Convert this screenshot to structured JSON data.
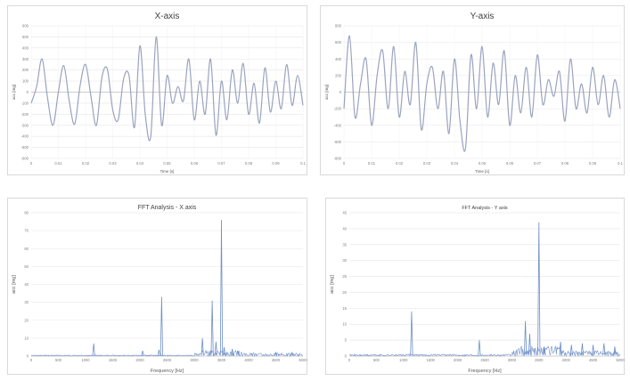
{
  "charts": [
    {
      "type": "line",
      "title": "X-axis",
      "xlabel": "Time [s]",
      "ylabel": "acc [mg]",
      "xlim": [
        0,
        0.1
      ],
      "ylim": [
        -600,
        600
      ],
      "xticks": [
        0,
        0.01,
        0.02,
        0.03,
        0.04,
        0.05,
        0.06,
        0.07,
        0.08,
        0.09,
        0.1
      ],
      "xtick_labels": [
        "0",
        "0.01",
        "0.02",
        "0.03",
        "0.04",
        "0.05",
        "0.06",
        "0.07",
        "0.08",
        "0.09",
        "0.1"
      ],
      "yticks": [
        -600,
        -500,
        -400,
        -300,
        -200,
        -100,
        0,
        100,
        200,
        300,
        400,
        500,
        600
      ],
      "ytick_labels": [
        "-600",
        "-500",
        "-400",
        "-300",
        "-200",
        "-100",
        "0",
        "100",
        "200",
        "300",
        "400",
        "500",
        "600"
      ],
      "grid": true,
      "line_color": "#9aa3bf",
      "x": [
        0,
        0.002,
        0.004,
        0.006,
        0.008,
        0.01,
        0.012,
        0.014,
        0.016,
        0.018,
        0.02,
        0.022,
        0.024,
        0.026,
        0.028,
        0.03,
        0.032,
        0.034,
        0.036,
        0.038,
        0.04,
        0.042,
        0.044,
        0.046,
        0.048,
        0.05,
        0.052,
        0.054,
        0.056,
        0.058,
        0.06,
        0.062,
        0.064,
        0.066,
        0.068,
        0.07,
        0.072,
        0.074,
        0.076,
        0.078,
        0.08,
        0.082,
        0.084,
        0.086,
        0.088,
        0.09,
        0.092,
        0.094,
        0.096,
        0.098,
        0.1
      ],
      "y": [
        -100,
        50,
        300,
        -50,
        -300,
        0,
        240,
        -80,
        -290,
        60,
        250,
        -40,
        -300,
        130,
        210,
        -160,
        -250,
        120,
        150,
        -320,
        420,
        -210,
        -400,
        500,
        -300,
        150,
        -100,
        50,
        -80,
        300,
        -250,
        100,
        -200,
        300,
        -390,
        100,
        -250,
        200,
        -100,
        260,
        -200,
        80,
        -280,
        220,
        -180,
        100,
        -150,
        250,
        -120,
        150,
        -120
      ]
    },
    {
      "type": "line",
      "title": "Y-axis",
      "xlabel": "Time [s]",
      "ylabel": "acc [mg]",
      "xlim": [
        0,
        0.1
      ],
      "ylim": [
        -800,
        800
      ],
      "xticks": [
        0,
        0.01,
        0.02,
        0.03,
        0.04,
        0.05,
        0.06,
        0.07,
        0.08,
        0.09,
        0.1
      ],
      "xtick_labels": [
        "0",
        "0.01",
        "0.02",
        "0.03",
        "0.04",
        "0.05",
        "0.06",
        "0.07",
        "0.08",
        "0.09",
        "0.1"
      ],
      "yticks": [
        -800,
        -600,
        -400,
        -200,
        0,
        200,
        400,
        600,
        800
      ],
      "ytick_labels": [
        "-800",
        "-600",
        "-400",
        "-200",
        "0",
        "200",
        "400",
        "600",
        "800"
      ],
      "grid": true,
      "line_color": "#9aa3bf",
      "x": [
        0,
        0.002,
        0.004,
        0.006,
        0.008,
        0.01,
        0.012,
        0.014,
        0.016,
        0.018,
        0.02,
        0.022,
        0.024,
        0.026,
        0.028,
        0.03,
        0.032,
        0.034,
        0.036,
        0.038,
        0.04,
        0.042,
        0.044,
        0.046,
        0.048,
        0.05,
        0.052,
        0.054,
        0.056,
        0.058,
        0.06,
        0.062,
        0.064,
        0.066,
        0.068,
        0.07,
        0.072,
        0.074,
        0.076,
        0.078,
        0.08,
        0.082,
        0.084,
        0.086,
        0.088,
        0.09,
        0.092,
        0.094,
        0.096,
        0.098,
        0.1
      ],
      "y": [
        -200,
        680,
        -300,
        100,
        400,
        -400,
        200,
        500,
        -200,
        550,
        -300,
        250,
        -150,
        600,
        -450,
        100,
        300,
        -200,
        250,
        -500,
        400,
        -350,
        -680,
        450,
        -200,
        550,
        -300,
        350,
        -150,
        500,
        -400,
        200,
        -250,
        300,
        -300,
        450,
        -150,
        150,
        -50,
        250,
        -350,
        400,
        -200,
        100,
        -250,
        300,
        -150,
        200,
        -300,
        150,
        -200
      ]
    },
    {
      "type": "line",
      "title": "FFT Analysis - X axis",
      "xlabel": "Frequency [Hz]",
      "ylabel": "acc [mg]",
      "xlim": [
        0,
        5000
      ],
      "ylim": [
        0,
        80
      ],
      "xticks": [
        0,
        500,
        1000,
        1500,
        2000,
        2500,
        3000,
        3500,
        4000,
        4500,
        5000
      ],
      "xtick_labels": [
        "0",
        "500",
        "1000",
        "1500",
        "2000",
        "2500",
        "3000",
        "3500",
        "4000",
        "4500",
        "5000"
      ],
      "yticks": [
        0,
        10,
        20,
        30,
        40,
        50,
        60,
        70,
        80
      ],
      "ytick_labels": [
        "0",
        "10",
        "20",
        "30",
        "40",
        "50",
        "60",
        "70",
        "80"
      ],
      "grid": true,
      "line_color": "#6f8fc8",
      "peaks": [
        {
          "f": 1150,
          "a": 7
        },
        {
          "f": 2050,
          "a": 3
        },
        {
          "f": 2350,
          "a": 3.5
        },
        {
          "f": 2400,
          "a": 33
        },
        {
          "f": 3150,
          "a": 10
        },
        {
          "f": 3330,
          "a": 31
        },
        {
          "f": 3400,
          "a": 8
        },
        {
          "f": 3500,
          "a": 76
        },
        {
          "f": 3550,
          "a": 5
        },
        {
          "f": 3700,
          "a": 4
        },
        {
          "f": 3800,
          "a": 3
        },
        {
          "f": 4500,
          "a": 2
        },
        {
          "f": 4800,
          "a": 2
        }
      ]
    },
    {
      "type": "line",
      "title": "FFT Analysis - Y axis",
      "xlabel": "Frequency [Hz]",
      "ylabel": "acc [mg]",
      "xlim": [
        0,
        5000
      ],
      "ylim": [
        0,
        45
      ],
      "xticks": [
        0,
        500,
        1000,
        1500,
        2000,
        2500,
        3000,
        3500,
        4000,
        4500,
        5000
      ],
      "xtick_labels": [
        "0",
        "500",
        "1000",
        "1500",
        "2000",
        "2500",
        "3000",
        "3500",
        "4000",
        "4500",
        "5000"
      ],
      "yticks": [
        0,
        5,
        10,
        15,
        20,
        25,
        30,
        35,
        40,
        45
      ],
      "ytick_labels": [
        "0",
        "5",
        "10",
        "15",
        "20",
        "25",
        "30",
        "35",
        "40",
        "45"
      ],
      "grid": true,
      "line_color": "#6f8fc8",
      "peaks": [
        {
          "f": 1150,
          "a": 14
        },
        {
          "f": 2400,
          "a": 5
        },
        {
          "f": 3250,
          "a": 11
        },
        {
          "f": 3330,
          "a": 7
        },
        {
          "f": 3500,
          "a": 42
        },
        {
          "f": 3600,
          "a": 3
        },
        {
          "f": 3900,
          "a": 4.5
        },
        {
          "f": 4100,
          "a": 3.5
        },
        {
          "f": 4300,
          "a": 4
        },
        {
          "f": 4500,
          "a": 3.5
        },
        {
          "f": 4700,
          "a": 4
        },
        {
          "f": 4900,
          "a": 3
        }
      ]
    }
  ]
}
